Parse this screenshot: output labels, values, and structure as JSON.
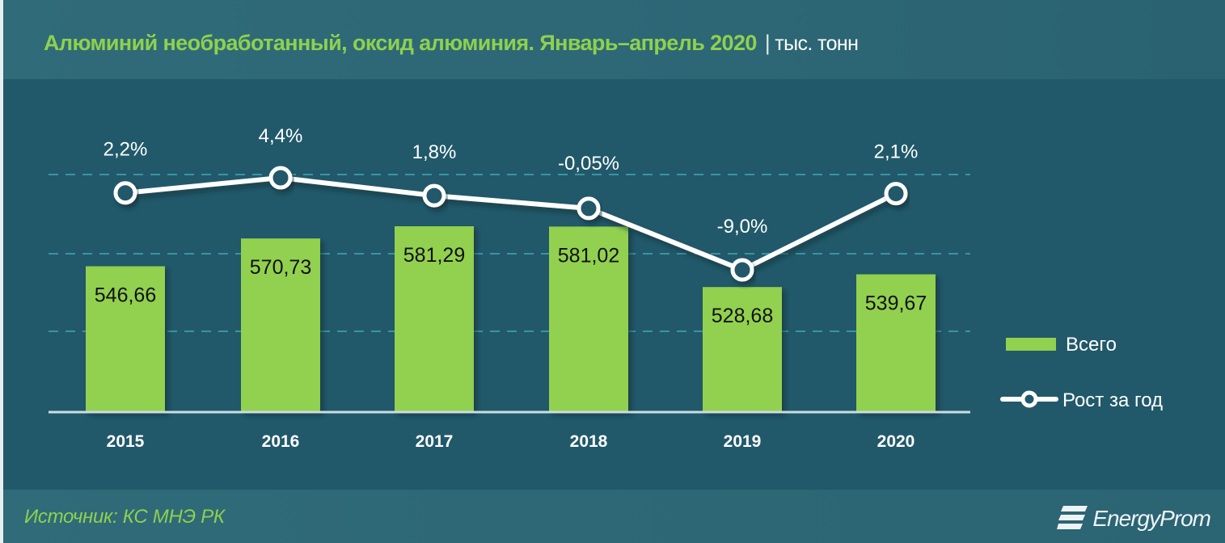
{
  "header": {
    "title": "Алюминий необработанный, оксид алюминия. Январь–апрель 2020",
    "separator": "|",
    "unit": "тыс. тонн"
  },
  "footer": {
    "source": "Источник: КС МНЭ РК",
    "logo_text": "EnergyProm",
    "logo_icon": "energyprom-stripes-icon"
  },
  "legend": {
    "bars_label": "Всего",
    "line_label": "Рост за год"
  },
  "colors": {
    "background": "#21596a",
    "header_bg": "#306b79",
    "bar": "#92d050",
    "title": "#8ed14e",
    "line": "#ffffff",
    "gridline": "#3a93a6"
  },
  "chart_data": {
    "type": "bar+line",
    "title": "Алюминий необработанный, оксид алюминия. Январь–апрель 2020",
    "unit": "тыс. тонн",
    "categories": [
      "2015",
      "2016",
      "2017",
      "2018",
      "2019",
      "2020"
    ],
    "series": [
      {
        "name": "Всего",
        "type": "bar",
        "values": [
          546.66,
          570.73,
          581.29,
          581.02,
          528.68,
          539.67
        ],
        "labels": [
          "546,66",
          "570,73",
          "581,29",
          "581,02",
          "528,68",
          "539,67"
        ]
      },
      {
        "name": "Рост за год",
        "type": "line",
        "unit": "%",
        "values": [
          2.2,
          4.4,
          1.8,
          -0.05,
          -9.0,
          2.1
        ],
        "labels": [
          "2,2%",
          "4,4%",
          "1,8%",
          "-0,05%",
          "-9,0%",
          "2,1%"
        ]
      }
    ],
    "xlabel": "",
    "ylabel": "",
    "grid": "dashed horizontal, 3 lines",
    "legend_position": "right"
  }
}
